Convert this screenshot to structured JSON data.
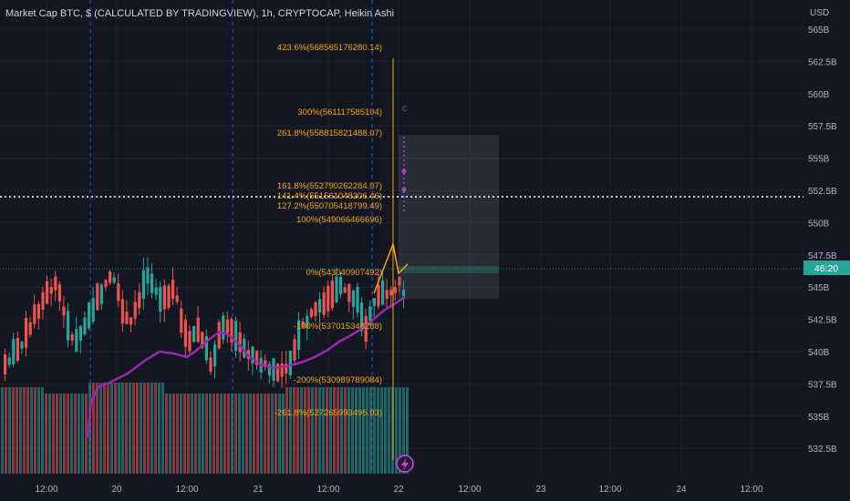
{
  "header": {
    "title": "Market Cap BTC, $ (CALCULATED BY TRADINGVIEW), 1h, CRYPTOCAP, Heikin Ashi"
  },
  "price_axis": {
    "currency": "USD",
    "ticks": [
      "565B",
      "562.5B",
      "560B",
      "557.5B",
      "555B",
      "552.5B",
      "550B",
      "547.5B",
      "545B",
      "542.5B",
      "540B",
      "537.5B",
      "535B",
      "532.5B"
    ],
    "current_price_label": "46:20"
  },
  "time_axis": {
    "ticks": [
      "12:00",
      "20",
      "12:00",
      "21",
      "12:00",
      "22",
      "12:00",
      "23",
      "12:00",
      "24",
      "12:00"
    ]
  },
  "fib_labels": [
    "423.6%(568565176280.14)",
    "300%(561117585104)",
    "261.8%(558815821488.07)",
    "161.8%(552790262284.07)",
    "141.4%(551561048206.46)",
    "127.2%(550705418799.49)",
    "100%(549066466696)",
    "0%(543040907492)",
    "-100%(537015348288)",
    "-200%(530989789084)",
    "-261.8%(527265993495.93)"
  ],
  "wave_label": "c",
  "colors": {
    "background": "#131722",
    "up": "#26a69a",
    "down": "#ef5350",
    "fib": "#f7a600",
    "ma": "#9c27b0",
    "wave": "#ab47bc",
    "grid": "#1e222d",
    "dashed_vertical": "#2962ff",
    "dotted_level": "#ffffff",
    "price_tag": "#26a69a"
  },
  "icons": {
    "lightning_button": "lightning-icon"
  }
}
